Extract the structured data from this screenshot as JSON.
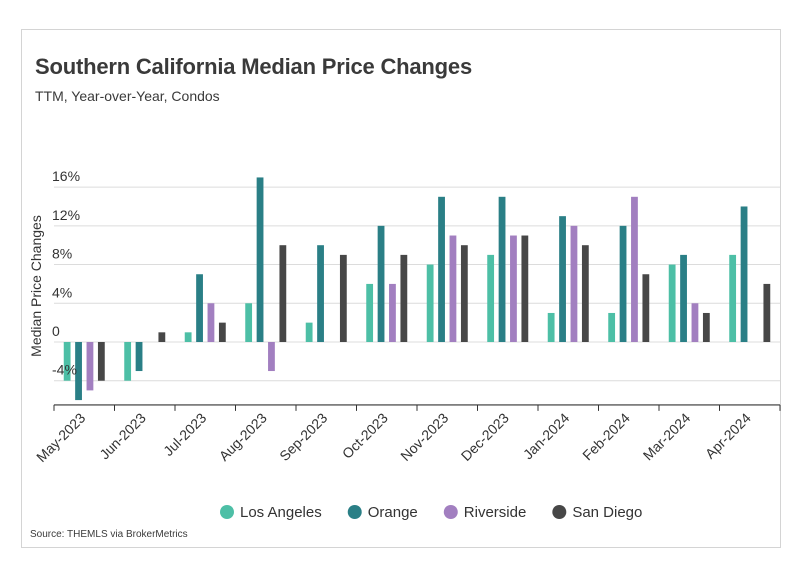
{
  "title": "Southern California Median Price Changes",
  "subtitle": "TTM, Year-over-Year, Condos",
  "source": "Source: THEMLS via BrokerMetrics",
  "chart_data": {
    "type": "bar",
    "title": "Southern California Median Price Changes",
    "subtitle": "TTM, Year-over-Year, Condos",
    "xlabel": "",
    "ylabel": "Median Price Changes",
    "ylim": [
      -6.5,
      16
    ],
    "yticks": [
      -4,
      0,
      4,
      8,
      12,
      16
    ],
    "ytick_labels": [
      "-4%",
      "0",
      "4%",
      "8%",
      "12%",
      "16%"
    ],
    "grid": true,
    "legend_position": "bottom",
    "categories": [
      "May-2023",
      "Jun-2023",
      "Jul-2023",
      "Aug-2023",
      "Sep-2023",
      "Oct-2023",
      "Nov-2023",
      "Dec-2023",
      "Jan-2024",
      "Feb-2024",
      "Mar-2024",
      "Apr-2024"
    ],
    "series": [
      {
        "name": "Los Angeles",
        "color": "#4dbfa6",
        "values": [
          -4,
          -4,
          1,
          4,
          2,
          6,
          8,
          9,
          3,
          3,
          8,
          9
        ]
      },
      {
        "name": "Orange",
        "color": "#2a7f86",
        "values": [
          -6,
          -3,
          7,
          17,
          10,
          12,
          15,
          15,
          13,
          12,
          9,
          14
        ]
      },
      {
        "name": "Riverside",
        "color": "#a27fc0",
        "values": [
          -5,
          0,
          4,
          -3,
          0,
          6,
          11,
          11,
          12,
          15,
          4,
          0
        ]
      },
      {
        "name": "San Diego",
        "color": "#474747",
        "values": [
          -4,
          1,
          2,
          10,
          9,
          9,
          10,
          11,
          10,
          7,
          3,
          6
        ]
      }
    ]
  }
}
